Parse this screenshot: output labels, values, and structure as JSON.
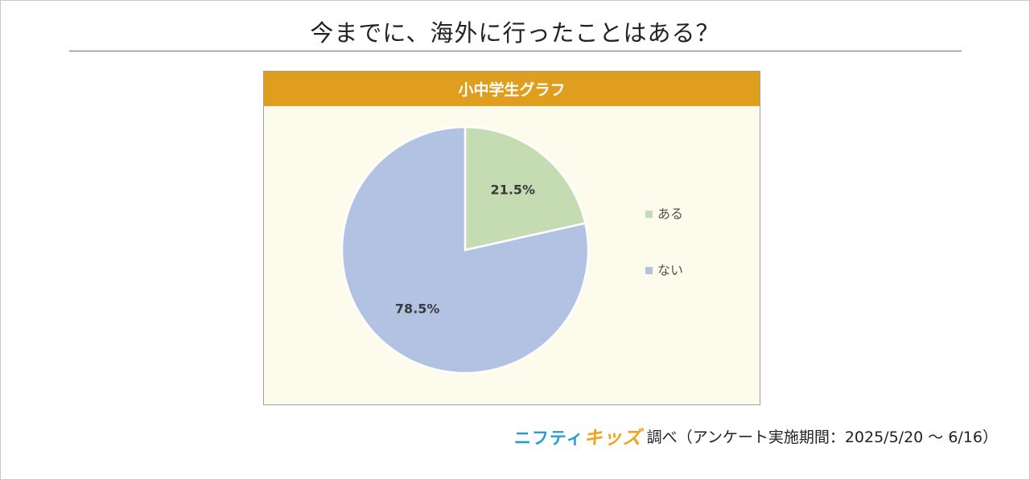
{
  "page": {
    "title": "今までに、海外に行ったことはある？"
  },
  "chart_header": "小中学生グラフ",
  "chart_data": {
    "type": "pie",
    "title": "小中学生グラフ",
    "labels": [
      "ある",
      "ない"
    ],
    "values": [
      21.5,
      78.5
    ],
    "value_labels": [
      "21.5%",
      "78.5%"
    ],
    "colors": [
      "#c5dcb2",
      "#b2c2e3"
    ],
    "start_angle_deg": 0,
    "direction": "clockwise",
    "legend_position": "right"
  },
  "footer": {
    "logo_part1": "ニフティ",
    "logo_part2": "キッズ",
    "source_text": "調べ（アンケート実施期間：2025/5/20 ～ 6/16）",
    "logo_colors": [
      "#2b9bd6",
      "#f0a21c"
    ]
  }
}
